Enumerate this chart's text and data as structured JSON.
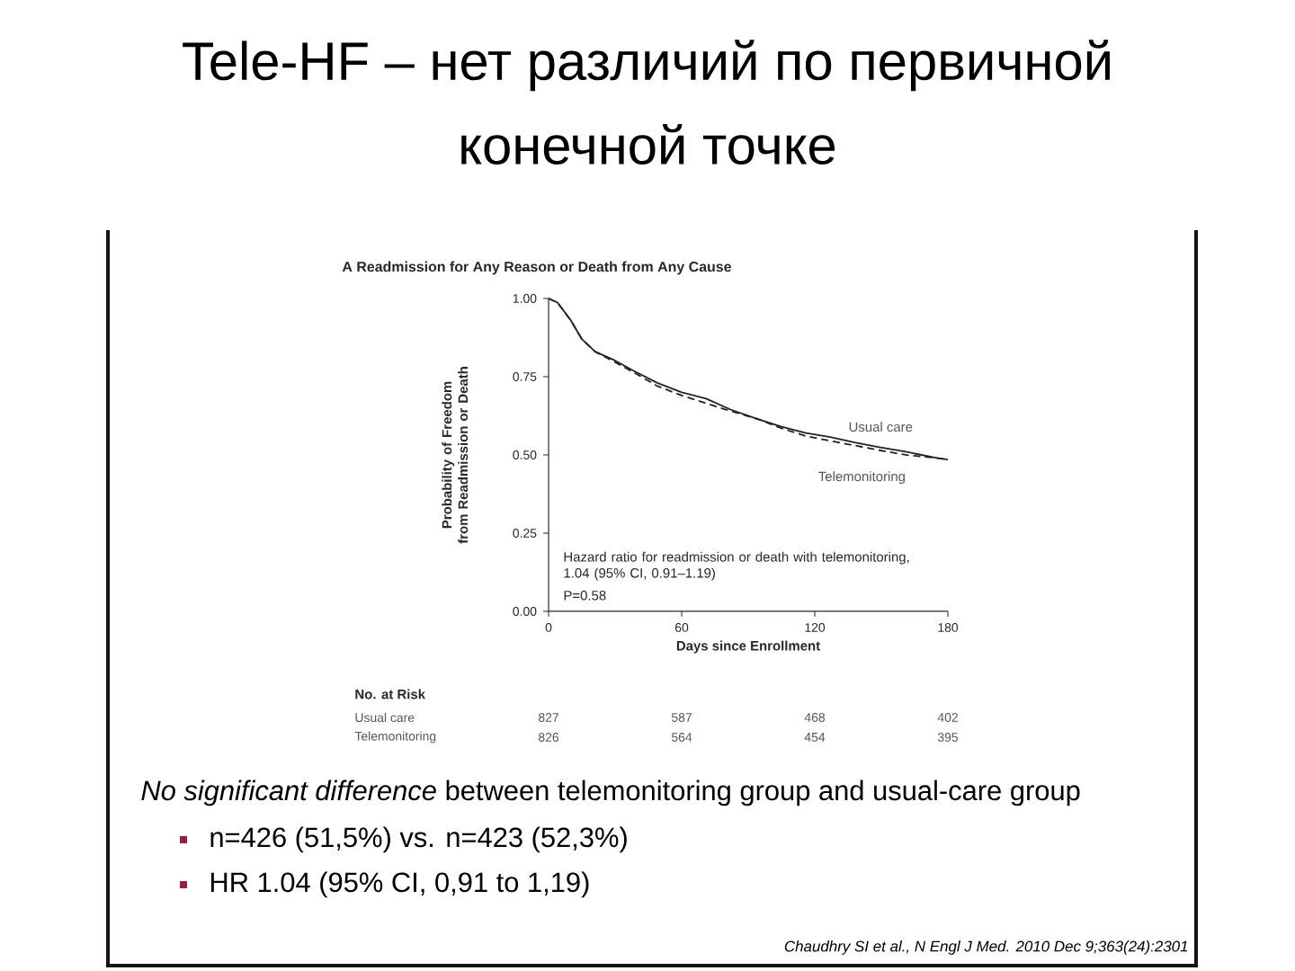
{
  "chart_data": {
    "type": "line",
    "title": "Tele-HF – нет различий по первичной конечной точке",
    "subtitle": "A  Readmission for Any Reason or Death from Any Cause",
    "xlabel": "Days since Enrollment",
    "ylabel": "Probability of Freedom from Readmission or Death",
    "x": [
      0,
      4,
      10,
      15,
      21,
      29,
      38,
      49,
      60,
      71,
      82,
      94,
      105,
      116,
      127,
      138,
      149,
      161,
      175,
      180
    ],
    "series": [
      {
        "name": "Usual care",
        "color": "#222222",
        "line_style": "solid",
        "values": [
          1.0,
          0.987,
          0.93,
          0.87,
          0.83,
          0.805,
          0.77,
          0.73,
          0.7,
          0.68,
          0.645,
          0.615,
          0.59,
          0.57,
          0.557,
          0.54,
          0.525,
          0.51,
          0.49,
          0.485
        ]
      },
      {
        "name": "Telemonitoring",
        "color": "#222222",
        "line_style": "dashed",
        "values": [
          1.0,
          0.987,
          0.93,
          0.87,
          0.83,
          0.8,
          0.765,
          0.72,
          0.69,
          0.665,
          0.64,
          0.615,
          0.585,
          0.56,
          0.545,
          0.53,
          0.515,
          0.5,
          0.49,
          0.485
        ]
      }
    ],
    "xlim": [
      0,
      180
    ],
    "xticks": [
      0,
      60,
      120,
      180
    ],
    "ylim": [
      0,
      1
    ],
    "yticks": [
      {
        "value": 0,
        "label": "0.00"
      },
      {
        "value": 0.25,
        "label": "0.25"
      },
      {
        "value": 0.5,
        "label": "0.50"
      },
      {
        "value": 0.75,
        "label": "0.75"
      },
      {
        "value": 1,
        "label": "1.00"
      }
    ],
    "annotations": [
      "Hazard ratio for readmission or death with telemonitoring, 1.04 (95% CI, 0.91–1.19)",
      "P=0.58",
      "No. at Risk",
      "827",
      "587",
      "468",
      "402",
      "826",
      "564",
      "454",
      "395",
      "*No significant difference* between telemonitoring group and usual-care group",
      "n=426 (51,5%) vs. n=423 (52,3%)",
      "HR 1.04 (95% CI, 0,91 to 1,19)",
      "Chaudhry SI et al., N Engl J Med. 2010 Dec 9;363(24):2301"
    ]
  }
}
